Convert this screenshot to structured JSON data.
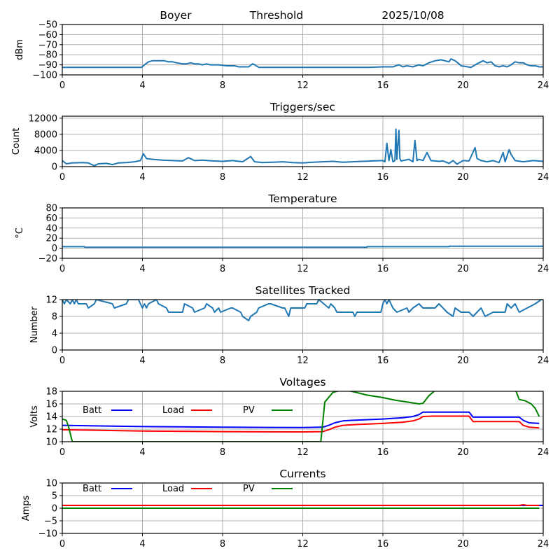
{
  "header": {
    "station": "Boyer",
    "mode": "Threshold",
    "date": "2025/10/08"
  },
  "chart_data": [
    {
      "id": "signal",
      "type": "line",
      "title": "",
      "xlabel": "",
      "ylabel": "dBm",
      "xlim": [
        0,
        24
      ],
      "ylim": [
        -100,
        -50
      ],
      "xticks": [
        0,
        4,
        8,
        12,
        16,
        20,
        24
      ],
      "yticks": [
        -100,
        -90,
        -80,
        -70,
        -60,
        -50
      ],
      "ytick_labels": [
        "−100",
        "−90",
        "−80",
        "−70",
        "−60",
        "−50"
      ],
      "grid": true,
      "series": [
        {
          "name": "signal",
          "color": "#1f77b4",
          "x": [
            0,
            3.95,
            4.1,
            4.3,
            4.5,
            4.7,
            4.9,
            5.1,
            5.3,
            5.5,
            5.7,
            6.0,
            6.2,
            6.4,
            6.6,
            6.8,
            7.0,
            7.2,
            7.4,
            7.6,
            7.8,
            8.0,
            8.2,
            8.4,
            8.6,
            8.8,
            9.0,
            9.3,
            9.5,
            9.6,
            9.8,
            10.5,
            11.0,
            12.0,
            15.3,
            16.0,
            16.5,
            16.8,
            17.0,
            17.2,
            17.5,
            17.8,
            18.0,
            18.3,
            18.6,
            18.9,
            19.1,
            19.3,
            19.4,
            19.6,
            19.8,
            19.9,
            20.4,
            20.7,
            21.0,
            21.2,
            21.4,
            21.6,
            21.8,
            22.0,
            22.2,
            22.4,
            22.6,
            22.8,
            23.0,
            23.2,
            23.4,
            23.6,
            23.8,
            24.0
          ],
          "y": [
            -92.5,
            -92.5,
            -90,
            -87,
            -86,
            -86,
            -86,
            -86,
            -87,
            -87,
            -88,
            -89,
            -89,
            -88,
            -89,
            -89,
            -90,
            -89,
            -90,
            -90,
            -90,
            -90.5,
            -91,
            -91,
            -91,
            -92,
            -92,
            -92,
            -89,
            -90,
            -92.5,
            -92.5,
            -92.5,
            -92.5,
            -92.5,
            -92,
            -92,
            -90,
            -92,
            -91,
            -92,
            -90,
            -91,
            -88,
            -86,
            -85,
            -86,
            -87,
            -84,
            -86,
            -89,
            -91,
            -92.5,
            -89,
            -86,
            -88,
            -87,
            -91,
            -92,
            -91,
            -92,
            -90,
            -87,
            -88,
            -88,
            -90,
            -91,
            -91,
            -92,
            -92
          ]
        }
      ]
    },
    {
      "id": "triggers",
      "type": "line",
      "title": "Triggers/sec",
      "xlabel": "",
      "ylabel": "Count",
      "xlim": [
        0,
        24
      ],
      "ylim": [
        0,
        12500
      ],
      "xticks": [
        0,
        4,
        8,
        12,
        16,
        20,
        24
      ],
      "yticks": [
        0,
        4000,
        8000,
        12000
      ],
      "ytick_labels": [
        "0",
        "4000",
        "8000",
        "12000"
      ],
      "grid": true,
      "series": [
        {
          "name": "triggers",
          "color": "#1f77b4",
          "x": [
            0,
            0.2,
            0.5,
            1.0,
            1.3,
            1.6,
            1.8,
            2.2,
            2.5,
            2.8,
            3.2,
            3.6,
            3.9,
            4.05,
            4.2,
            4.5,
            5.0,
            5.5,
            6.0,
            6.3,
            6.6,
            7.0,
            7.5,
            8.0,
            8.5,
            9.0,
            9.4,
            9.6,
            10.0,
            10.5,
            11.0,
            11.5,
            12.0,
            12.5,
            13.0,
            13.5,
            14.0,
            14.5,
            15.0,
            15.5,
            16.0,
            16.1,
            16.2,
            16.3,
            16.4,
            16.5,
            16.6,
            16.65,
            16.7,
            16.8,
            16.85,
            16.9,
            17.0,
            17.3,
            17.5,
            17.6,
            17.7,
            17.8,
            18.0,
            18.2,
            18.4,
            18.8,
            19.0,
            19.3,
            19.5,
            19.7,
            20.0,
            20.3,
            20.6,
            20.7,
            20.9,
            21.2,
            21.5,
            21.8,
            22.0,
            22.1,
            22.3,
            22.4,
            22.6,
            23.0,
            23.5,
            24.0
          ],
          "y": [
            1500,
            700,
            900,
            1000,
            900,
            200,
            700,
            800,
            500,
            900,
            1000,
            1200,
            1500,
            3200,
            2000,
            1800,
            1600,
            1500,
            1400,
            2200,
            1500,
            1600,
            1400,
            1300,
            1500,
            1200,
            2500,
            1200,
            1000,
            1100,
            1200,
            1000,
            900,
            1100,
            1200,
            1300,
            1100,
            1200,
            1300,
            1400,
            1500,
            1200,
            5800,
            1500,
            4200,
            1200,
            1500,
            9300,
            1800,
            9000,
            2000,
            1400,
            1500,
            1800,
            1200,
            6500,
            1500,
            1800,
            1500,
            3500,
            1500,
            1300,
            1400,
            800,
            1500,
            600,
            1500,
            1400,
            4700,
            2000,
            1500,
            1200,
            1500,
            1000,
            3500,
            1200,
            4200,
            3000,
            1500,
            1200,
            1500,
            1300
          ]
        }
      ]
    },
    {
      "id": "temperature",
      "type": "line",
      "title": "Temperature",
      "xlabel": "",
      "ylabel": "°C",
      "xlim": [
        0,
        24
      ],
      "ylim": [
        -20,
        80
      ],
      "xticks": [
        0,
        4,
        8,
        12,
        16,
        20,
        24
      ],
      "yticks": [
        -20,
        0,
        20,
        40,
        60,
        80
      ],
      "ytick_labels": [
        "−20",
        "0",
        "20",
        "40",
        "60",
        "80"
      ],
      "grid": true,
      "series": [
        {
          "name": "temperature",
          "color": "#1f77b4",
          "x": [
            0,
            1.1,
            1.12,
            15.2,
            15.22,
            19.3,
            19.32,
            24
          ],
          "y": [
            3,
            3,
            2,
            2,
            3,
            3,
            4,
            4
          ]
        }
      ]
    },
    {
      "id": "satellites",
      "type": "line",
      "title": "Satellites Tracked",
      "xlabel": "",
      "ylabel": "Number",
      "xlim": [
        0,
        24
      ],
      "ylim": [
        0,
        12
      ],
      "xticks": [
        0,
        4,
        8,
        12,
        16,
        20,
        24
      ],
      "yticks": [
        0,
        4,
        8,
        12
      ],
      "ytick_labels": [
        "0",
        "4",
        "8",
        "12"
      ],
      "grid": true,
      "series": [
        {
          "name": "satellites",
          "color": "#1f77b4",
          "x": [
            0,
            0.1,
            0.2,
            0.4,
            0.5,
            0.6,
            0.7,
            0.8,
            1.2,
            1.3,
            1.6,
            1.7,
            2.5,
            2.6,
            3.2,
            3.3,
            3.8,
            3.9,
            4.0,
            4.1,
            4.2,
            4.3,
            4.7,
            4.8,
            5.2,
            5.3,
            6.0,
            6.1,
            6.5,
            6.6,
            7.1,
            7.2,
            7.5,
            7.6,
            7.8,
            7.9,
            8.4,
            8.5,
            8.9,
            9.0,
            9.3,
            9.4,
            9.7,
            9.8,
            10.3,
            10.4,
            11.0,
            11.1,
            11.3,
            11.4,
            12.1,
            12.2,
            12.7,
            12.8,
            13.3,
            13.4,
            13.6,
            13.7,
            14.5,
            14.6,
            14.7,
            15.0,
            15.9,
            16.0,
            16.1,
            16.2,
            16.3,
            16.5,
            16.7,
            17.2,
            17.3,
            17.5,
            17.8,
            18.0,
            18.6,
            18.8,
            19.2,
            19.5,
            19.6,
            19.9,
            20.3,
            20.5,
            20.7,
            20.9,
            21.0,
            21.1,
            21.5,
            22.1,
            22.2,
            22.4,
            22.6,
            22.8,
            23.2,
            23.6,
            23.9,
            24.0
          ],
          "y": [
            12,
            11,
            12,
            11,
            12,
            11,
            12,
            11,
            11,
            10,
            11,
            12,
            11,
            10,
            11,
            12,
            12,
            11,
            10,
            11,
            10,
            11,
            12,
            11,
            10,
            9,
            9,
            11,
            10,
            9,
            10,
            11,
            10,
            9,
            10,
            9,
            10,
            10,
            9,
            8,
            7,
            8,
            9,
            10,
            11,
            11,
            10,
            10,
            8,
            10,
            10,
            11,
            11,
            12,
            10,
            11,
            10,
            9,
            9,
            8,
            9,
            9,
            9,
            11,
            12,
            11,
            12,
            10,
            9,
            10,
            9,
            10,
            11,
            10,
            10,
            11,
            9,
            8,
            10,
            9,
            9,
            8,
            9,
            10,
            9,
            8,
            9,
            9,
            11,
            10,
            11,
            9,
            10,
            11,
            12,
            12
          ]
        }
      ]
    },
    {
      "id": "voltages",
      "type": "line",
      "title": "Voltages",
      "xlabel": "",
      "ylabel": "Volts",
      "xlim": [
        0,
        24
      ],
      "ylim": [
        10,
        18
      ],
      "xticks": [
        0,
        4,
        8,
        12,
        16,
        20,
        24
      ],
      "yticks": [
        10,
        12,
        14,
        16,
        18
      ],
      "ytick_labels": [
        "10",
        "12",
        "14",
        "16",
        "18"
      ],
      "grid": true,
      "legend": "top-left (inline row)",
      "series": [
        {
          "name": "Batt",
          "color": "#0000ff",
          "x": [
            0,
            4,
            8,
            12,
            13.0,
            13.3,
            13.6,
            14.0,
            14.5,
            16.0,
            17.0,
            17.5,
            17.8,
            18.0,
            18.5,
            20.3,
            20.5,
            22.8,
            23.0,
            23.3,
            23.8
          ],
          "y": [
            12.6,
            12.4,
            12.3,
            12.25,
            12.3,
            12.6,
            13.0,
            13.3,
            13.4,
            13.6,
            13.8,
            14.0,
            14.3,
            14.7,
            14.7,
            14.7,
            13.9,
            13.9,
            13.4,
            13.0,
            12.9
          ]
        },
        {
          "name": "Load",
          "color": "#ff0000",
          "x": [
            0,
            4,
            8,
            12,
            13.0,
            13.3,
            13.6,
            14.0,
            14.5,
            16.0,
            17.0,
            17.5,
            17.8,
            18.0,
            18.5,
            20.3,
            20.5,
            22.8,
            23.0,
            23.3,
            23.8
          ],
          "y": [
            11.9,
            11.7,
            11.6,
            11.55,
            11.6,
            11.9,
            12.3,
            12.6,
            12.7,
            12.9,
            13.1,
            13.3,
            13.6,
            14.0,
            14.05,
            14.05,
            13.2,
            13.2,
            12.6,
            12.3,
            12.2
          ]
        },
        {
          "name": "PV",
          "color": "#008000",
          "x": [
            0,
            0.2,
            0.3,
            0.5,
            12.9,
            13.1,
            13.5,
            14.0,
            14.7,
            15.2,
            16.0,
            16.6,
            17.2,
            17.8,
            18.0,
            18.3,
            18.6,
            22.6,
            22.8,
            23.1,
            23.4,
            23.6,
            23.8
          ],
          "y": [
            13.6,
            13.4,
            12.5,
            10,
            10,
            16.3,
            17.8,
            18.3,
            17.8,
            17.4,
            17.0,
            16.6,
            16.3,
            16.0,
            16.1,
            17.3,
            18.1,
            18.4,
            16.7,
            16.5,
            16.0,
            15.3,
            14.0
          ]
        }
      ]
    },
    {
      "id": "currents",
      "type": "line",
      "title": "Currents",
      "xlabel": "",
      "ylabel": "Amps",
      "xlim": [
        0,
        24
      ],
      "ylim": [
        -10,
        10
      ],
      "xticks": [
        0,
        4,
        8,
        12,
        16,
        20,
        24
      ],
      "yticks": [
        -10,
        -5,
        0,
        5,
        10
      ],
      "ytick_labels": [
        "−10",
        "−5",
        "0",
        "5",
        "10"
      ],
      "grid": true,
      "legend": "top-left (inline row)",
      "series": [
        {
          "name": "Batt",
          "color": "#0000ff",
          "x": [
            0,
            24
          ],
          "y": [
            1.1,
            1.1
          ]
        },
        {
          "name": "Load",
          "color": "#ff0000",
          "x": [
            0,
            22.8,
            23.0,
            23.2,
            23.8
          ],
          "y": [
            1.1,
            1.1,
            1.4,
            1.1,
            1.1
          ]
        },
        {
          "name": "PV",
          "color": "#008000",
          "x": [
            0,
            23.8
          ],
          "y": [
            0,
            0
          ]
        }
      ]
    }
  ]
}
